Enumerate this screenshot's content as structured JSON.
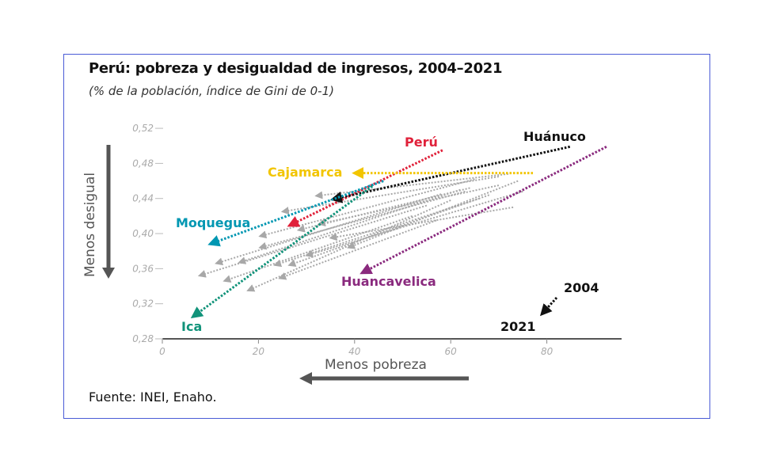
{
  "title": "Perú: pobreza y desigualdad de ingresos, 2004–2021",
  "subtitle": "(% de la población, índice de Gini de 0-1)",
  "source": "Fuente: INEI, Enaho.",
  "chart_data": {
    "type": "scatter",
    "subtype": "arrow (2004 → 2021)",
    "title": "Perú: pobreza y desigualdad de ingresos, 2004–2021",
    "xlabel": "Menos pobreza",
    "ylabel": "Menos desigual",
    "xlim": [
      0,
      95
    ],
    "ylim": [
      0.28,
      0.52
    ],
    "x_ticks": [
      "0",
      "20",
      "40",
      "60",
      "80"
    ],
    "y_ticks": [
      "0,28",
      "0,32",
      "0,36",
      "0,40",
      "0,44",
      "0,48",
      "0,52"
    ],
    "legend": {
      "start_label": "2004",
      "end_label": "2021",
      "placement": "bottom-right"
    },
    "highlighted": [
      {
        "name": "Perú",
        "color": "#e0213a",
        "x2004": 58.3,
        "y2004": 0.495,
        "x2021": 26.4,
        "y2021": 0.409
      },
      {
        "name": "Huánuco",
        "color": "#111111",
        "x2004": 84.8,
        "y2004": 0.499,
        "x2021": 35.4,
        "y2021": 0.439
      },
      {
        "name": "Cajamarca",
        "color": "#f2c500",
        "x2004": 77.1,
        "y2004": 0.469,
        "x2021": 39.9,
        "y2021": 0.469
      },
      {
        "name": "Moquegua",
        "color": "#0097b2",
        "x2004": 46.0,
        "y2004": 0.46,
        "x2021": 9.9,
        "y2021": 0.388
      },
      {
        "name": "Ica",
        "color": "#11937a",
        "x2004": 43.7,
        "y2004": 0.454,
        "x2021": 6.3,
        "y2021": 0.305
      },
      {
        "name": "Huancavelica",
        "color": "#8a2a7e",
        "x2004": 92.4,
        "y2004": 0.499,
        "x2021": 41.5,
        "y2021": 0.355
      }
    ],
    "other_regions": {
      "color": "#a8a8a8",
      "arrows": [
        [
          55,
          0.432,
          7.7,
          0.352
        ],
        [
          58,
          0.445,
          11.2,
          0.366
        ],
        [
          52,
          0.42,
          12.9,
          0.346
        ],
        [
          62,
          0.45,
          16.0,
          0.367
        ],
        [
          60,
          0.438,
          17.8,
          0.335
        ],
        [
          65,
          0.462,
          20.3,
          0.397
        ],
        [
          63,
          0.448,
          20.3,
          0.384
        ],
        [
          57,
          0.415,
          24.4,
          0.349
        ],
        [
          70,
          0.465,
          25.0,
          0.425
        ],
        [
          66,
          0.44,
          23.4,
          0.364
        ],
        [
          68,
          0.444,
          26.4,
          0.364
        ],
        [
          72,
          0.468,
          32.0,
          0.443
        ],
        [
          70,
          0.455,
          32.6,
          0.411
        ],
        [
          74,
          0.46,
          38.7,
          0.384
        ],
        [
          64,
          0.452,
          28.3,
          0.404
        ],
        [
          73,
          0.43,
          35.0,
          0.395
        ],
        [
          75,
          0.448,
          30.0,
          0.375
        ]
      ]
    }
  }
}
